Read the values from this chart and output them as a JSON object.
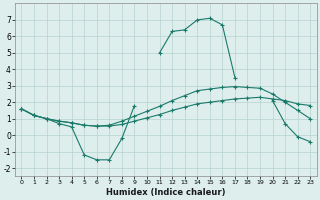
{
  "xlabel": "Humidex (Indice chaleur)",
  "x": [
    0,
    1,
    2,
    3,
    4,
    5,
    6,
    7,
    8,
    9,
    10,
    11,
    12,
    13,
    14,
    15,
    16,
    17,
    18,
    19,
    20,
    21,
    22,
    23
  ],
  "main_curve": [
    1.6,
    1.2,
    1.0,
    0.7,
    0.5,
    -1.2,
    -1.5,
    -1.5,
    -0.2,
    1.8,
    null,
    5.0,
    6.3,
    6.4,
    7.0,
    7.1,
    6.7,
    3.5,
    null,
    null,
    2.1,
    0.7,
    -0.1,
    -0.4
  ],
  "flat_line": [
    1.6,
    1.2,
    1.0,
    0.85,
    0.75,
    0.6,
    0.55,
    0.55,
    0.65,
    0.85,
    1.05,
    1.25,
    1.5,
    1.7,
    1.9,
    2.0,
    2.1,
    2.2,
    2.25,
    2.3,
    2.2,
    2.1,
    1.9,
    1.8
  ],
  "mid_line": [
    1.6,
    1.2,
    1.0,
    0.85,
    0.75,
    0.6,
    0.55,
    0.6,
    0.85,
    1.15,
    1.45,
    1.75,
    2.1,
    2.4,
    2.7,
    2.8,
    2.9,
    2.95,
    2.9,
    2.85,
    2.5,
    2.0,
    1.5,
    1.0
  ],
  "bg_color": "#ddeeed",
  "line_color": "#1a7a6a",
  "grid_color": "#b8d4d0",
  "ylim": [
    -2.5,
    8.0
  ],
  "xlim": [
    -0.5,
    23.5
  ],
  "yticks": [
    -2,
    -1,
    0,
    1,
    2,
    3,
    4,
    5,
    6,
    7
  ],
  "xticks": [
    0,
    1,
    2,
    3,
    4,
    5,
    6,
    7,
    8,
    9,
    10,
    11,
    12,
    13,
    14,
    15,
    16,
    17,
    18,
    19,
    20,
    21,
    22,
    23
  ]
}
